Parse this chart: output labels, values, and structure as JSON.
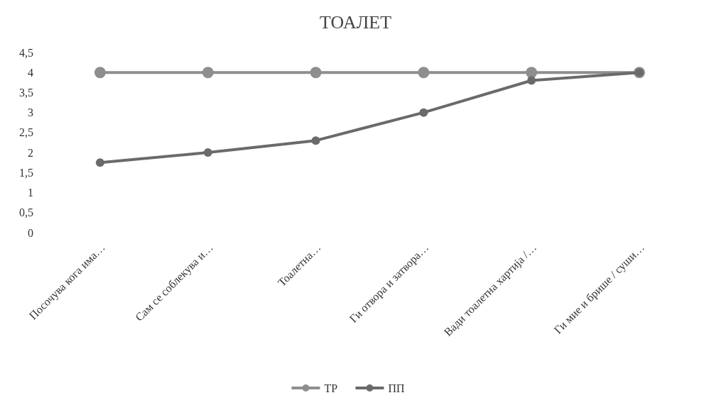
{
  "chart_data": {
    "type": "line",
    "title": "ТОАЛЕТ",
    "categories": [
      "Посочува кога има…",
      "Сам се соблекува и…",
      "Тоалетна…",
      "Ги отвора и затвора…",
      "Вади тоалетна хартија /…",
      "Ги мие и брише / суши…"
    ],
    "series": [
      {
        "name": "ТР",
        "color": "#8e8e8e",
        "values": [
          4,
          4,
          4,
          4,
          4,
          4
        ]
      },
      {
        "name": "ПП",
        "color": "#6a6a6a",
        "values": [
          1.75,
          2,
          2.3,
          3,
          3.8,
          4
        ]
      }
    ],
    "ylim": [
      0,
      4.5
    ],
    "yticks": [
      0,
      {
        "value": 0.5,
        "label": "0,5"
      },
      1,
      {
        "value": 1.5,
        "label": "1,5"
      },
      2,
      {
        "value": 2.5,
        "label": "2,5"
      },
      3,
      {
        "value": 3.5,
        "label": "3,5"
      },
      4,
      {
        "value": 4.5,
        "label": "4,5"
      }
    ],
    "grid": false,
    "legend": "bottom",
    "marker": "circle",
    "line_style": "solid"
  }
}
